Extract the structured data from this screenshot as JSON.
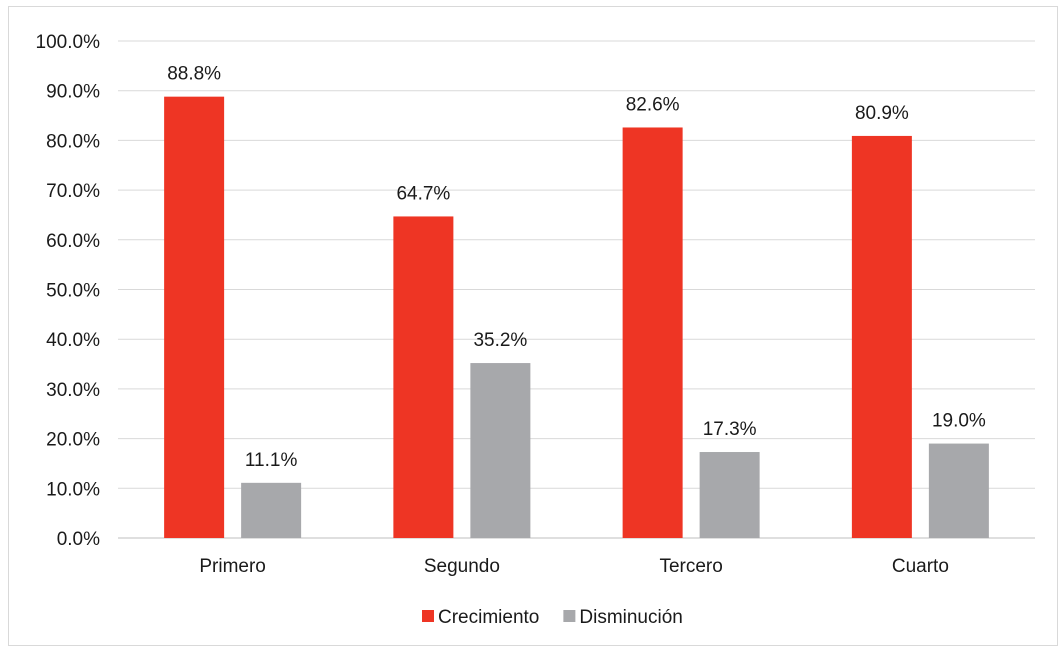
{
  "chart_data": {
    "type": "bar",
    "categories": [
      "Primero",
      "Segundo",
      "Tercero",
      "Cuarto"
    ],
    "series": [
      {
        "name": "Crecimiento",
        "color": "#ee3524",
        "values": [
          88.8,
          64.7,
          82.6,
          80.9
        ],
        "labels": [
          "88.8%",
          "64.7%",
          "82.6%",
          "80.9%"
        ]
      },
      {
        "name": "Disminución",
        "color": "#a7a8ab",
        "values": [
          11.1,
          35.2,
          17.3,
          19.0
        ],
        "labels": [
          "11.1%",
          "35.2%",
          "17.3%",
          "19.0%"
        ]
      }
    ],
    "ylim": [
      0,
      100
    ],
    "yticks": [
      0,
      10,
      20,
      30,
      40,
      50,
      60,
      70,
      80,
      90,
      100
    ],
    "ytick_labels": [
      "0.0%",
      "10.0%",
      "20.0%",
      "30.0%",
      "40.0%",
      "50.0%",
      "60.0%",
      "70.0%",
      "80.0%",
      "90.0%",
      "100.0%"
    ],
    "title": "",
    "xlabel": "",
    "ylabel": "",
    "grid": true,
    "legend": "bottom-center"
  }
}
